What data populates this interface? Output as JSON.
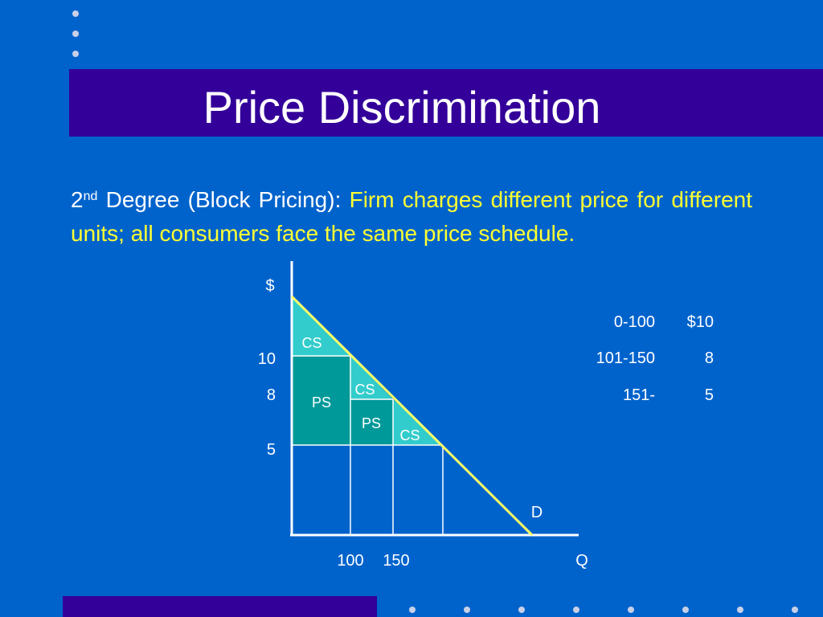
{
  "slide": {
    "title": "Price Discrimination",
    "body": {
      "ordinal_number": "2",
      "ordinal_suffix": "nd",
      "lead": " Degree (Block Pricing): ",
      "highlight": "Firm charges different price for different units; all consumers face the same price schedule."
    }
  },
  "diagram": {
    "y_axis_label": "$",
    "x_axis_label": "Q",
    "demand_label": "D",
    "y_ticks": [
      "10",
      "8",
      "5"
    ],
    "x_ticks": [
      "100",
      "150"
    ],
    "regions": {
      "cs_1": "CS",
      "ps_1": "PS",
      "cs_2": "CS",
      "ps_2": "PS",
      "cs_3": "CS"
    }
  },
  "price_schedule": [
    {
      "range": "0-100",
      "price": "$10"
    },
    {
      "range": "101-150",
      "price": "8"
    },
    {
      "range": "151-",
      "price": "5"
    }
  ],
  "colors": {
    "background": "#0063CC",
    "title_bar": "#330099",
    "highlight_text": "#FFFF33",
    "consumer_surplus": "#33CCCC",
    "producer_surplus": "#009999",
    "demand_line": "#FFFF66",
    "axes": "#FFFFFF"
  }
}
